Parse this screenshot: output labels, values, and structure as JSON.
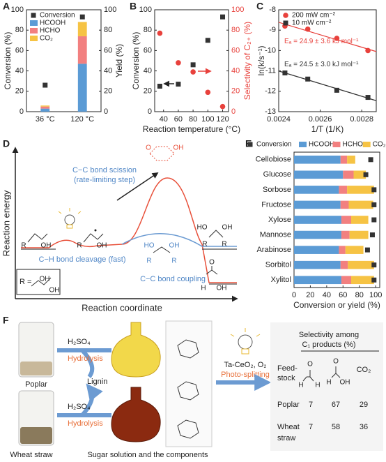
{
  "chart_data": [
    {
      "type": "bar",
      "label": "A",
      "categories": [
        "36 °C",
        "120 °C"
      ],
      "ylabel": "Conversion (%)",
      "y2label": "Yield (%)",
      "ylim": [
        0,
        100
      ],
      "yticks": [
        0,
        20,
        40,
        60,
        80,
        100
      ],
      "y2lim": [
        0,
        100
      ],
      "y2ticks": [
        0,
        20,
        40,
        60,
        80,
        100
      ],
      "legend": "upper-left",
      "series": [
        {
          "name": "Conversion",
          "color": "#333333",
          "style": "point",
          "marker": "square",
          "values": [
            26,
            93
          ]
        },
        {
          "name": "HCOOH",
          "color": "#5b9bd5",
          "style": "stacked",
          "axis": "y2",
          "values": [
            3,
            47
          ]
        },
        {
          "name": "HCHO",
          "color": "#f28080",
          "style": "stacked",
          "axis": "y2",
          "values": [
            2,
            27
          ]
        },
        {
          "name": "CO₂",
          "color": "#f6c344",
          "style": "stacked",
          "axis": "y2",
          "values": [
            1,
            14
          ]
        }
      ]
    },
    {
      "type": "scatter",
      "label": "B",
      "x": [
        35,
        60,
        80,
        100,
        120
      ],
      "xlabel": "Reaction temperature (°C)",
      "ylabel": "Conversion (%)",
      "y2label": "Selectivity of C₂₊ (%)",
      "y2color": "#e8413c",
      "xlim": [
        28,
        128
      ],
      "xticks": [
        40,
        60,
        80,
        100,
        120
      ],
      "ylim": [
        0,
        100
      ],
      "yticks": [
        0,
        20,
        40,
        60,
        80,
        100
      ],
      "y2lim": [
        0,
        100
      ],
      "y2ticks": [
        0,
        20,
        40,
        60,
        80,
        100
      ],
      "series": [
        {
          "color": "#333333",
          "style": "point",
          "marker": "square",
          "values": [
            25,
            27,
            46,
            70,
            93
          ]
        },
        {
          "color": "#e8413c",
          "style": "point",
          "marker": "circle",
          "axis": "y2",
          "values": [
            77,
            48,
            39,
            19,
            5
          ]
        }
      ]
    },
    {
      "type": "scatter",
      "label": "C",
      "x": [
        0.00243,
        0.00254,
        0.00268,
        0.00283
      ],
      "xlabel": "1/T (1/K)",
      "ylabel": "ln(k/s⁻¹)",
      "xlim": [
        0.0024,
        0.00287
      ],
      "xticks": [
        0.0024,
        0.0026,
        0.0028
      ],
      "ylim": [
        -13,
        -8
      ],
      "yticks": [
        -13,
        -12,
        -11,
        -10,
        -9,
        -8
      ],
      "fit": true,
      "legend": "upper-left",
      "series": [
        {
          "name": "200 mW cm⁻²",
          "color": "#e8413c",
          "style": "point",
          "marker": "circle",
          "values": [
            -8.8,
            -8.95,
            -9.4,
            -10.0
          ],
          "annotation": "Eₐ = 24.9 ± 3.6 kJ mol⁻¹"
        },
        {
          "name": "10 mW cm⁻²",
          "color": "#333333",
          "style": "point",
          "marker": "square",
          "values": [
            -11.1,
            -11.4,
            -11.95,
            -12.3
          ],
          "annotation": "Eₐ = 24.5 ± 3.0 kJ mol⁻¹"
        }
      ]
    },
    {
      "type": "barh",
      "label": "E",
      "categories": [
        "Cellobiose",
        "Glucose",
        "Sorbose",
        "Fructose",
        "Xylose",
        "Mannose",
        "Arabinose",
        "Sorbitol",
        "Xylitol"
      ],
      "xlabel": "Conversion or yield (%)",
      "xlim": [
        0,
        105
      ],
      "xticks": [
        0,
        20,
        40,
        60,
        80,
        100
      ],
      "legend": "top",
      "series": [
        {
          "name": "Conversion",
          "color": "#333333",
          "style": "point",
          "marker": "square",
          "values": [
            94,
            88,
            98,
            98,
            98,
            96,
            90,
            98,
            98
          ]
        },
        {
          "name": "HCOOH",
          "color": "#5b9bd5",
          "style": "stacked",
          "values": [
            57,
            60,
            55,
            57,
            58,
            58,
            55,
            57,
            58
          ]
        },
        {
          "name": "HCHO",
          "color": "#f28080",
          "style": "stacked",
          "values": [
            8,
            13,
            10,
            10,
            12,
            10,
            8,
            9,
            12
          ]
        },
        {
          "name": "CO₂",
          "color": "#f6c344",
          "style": "stacked",
          "values": [
            10,
            15,
            33,
            30,
            21,
            23,
            22,
            32,
            28
          ]
        }
      ]
    }
  ],
  "panel_d": {
    "label": "D",
    "y_axis": "Reaction energy",
    "x_axis": "Reaction coordinate",
    "scission": [
      "C−C bond scission",
      "(rate-limiting step)"
    ],
    "cleavage": "C−H bond cleavage (fast)",
    "coupling": "C−C bond coupling",
    "r_def": "R =",
    "structure_labels": [
      "R",
      "OH",
      "R",
      "OH",
      "HO",
      "OH",
      "R",
      "R",
      "HO",
      "R",
      "R",
      "OH",
      "O",
      "H",
      "OH",
      "O",
      "OH",
      "OH",
      "OH"
    ]
  },
  "panel_f": {
    "label": "F",
    "feedstocks": [
      "Poplar",
      "Wheat straw"
    ],
    "acid": "H₂SO₄",
    "hydrolysis": "Hydrolysis",
    "lignin": "Lignin",
    "sugar_caption": "Sugar solution and the components",
    "catalyst": "Ta-CeO₂, O₂",
    "process": "Photo-splitting",
    "table": {
      "title": [
        "Selectivity among",
        "C₁ products (%)"
      ],
      "row_header": [
        "Feed-",
        "stock"
      ],
      "header_atoms": [
        "O",
        "H",
        "H",
        "O",
        "H",
        "OH"
      ],
      "co2": "CO₂",
      "rows": [
        {
          "name": [
            "Poplar"
          ],
          "values": [
            7,
            67,
            29
          ]
        },
        {
          "name": [
            "Wheat",
            "straw"
          ],
          "values": [
            7,
            58,
            36
          ]
        }
      ]
    }
  }
}
